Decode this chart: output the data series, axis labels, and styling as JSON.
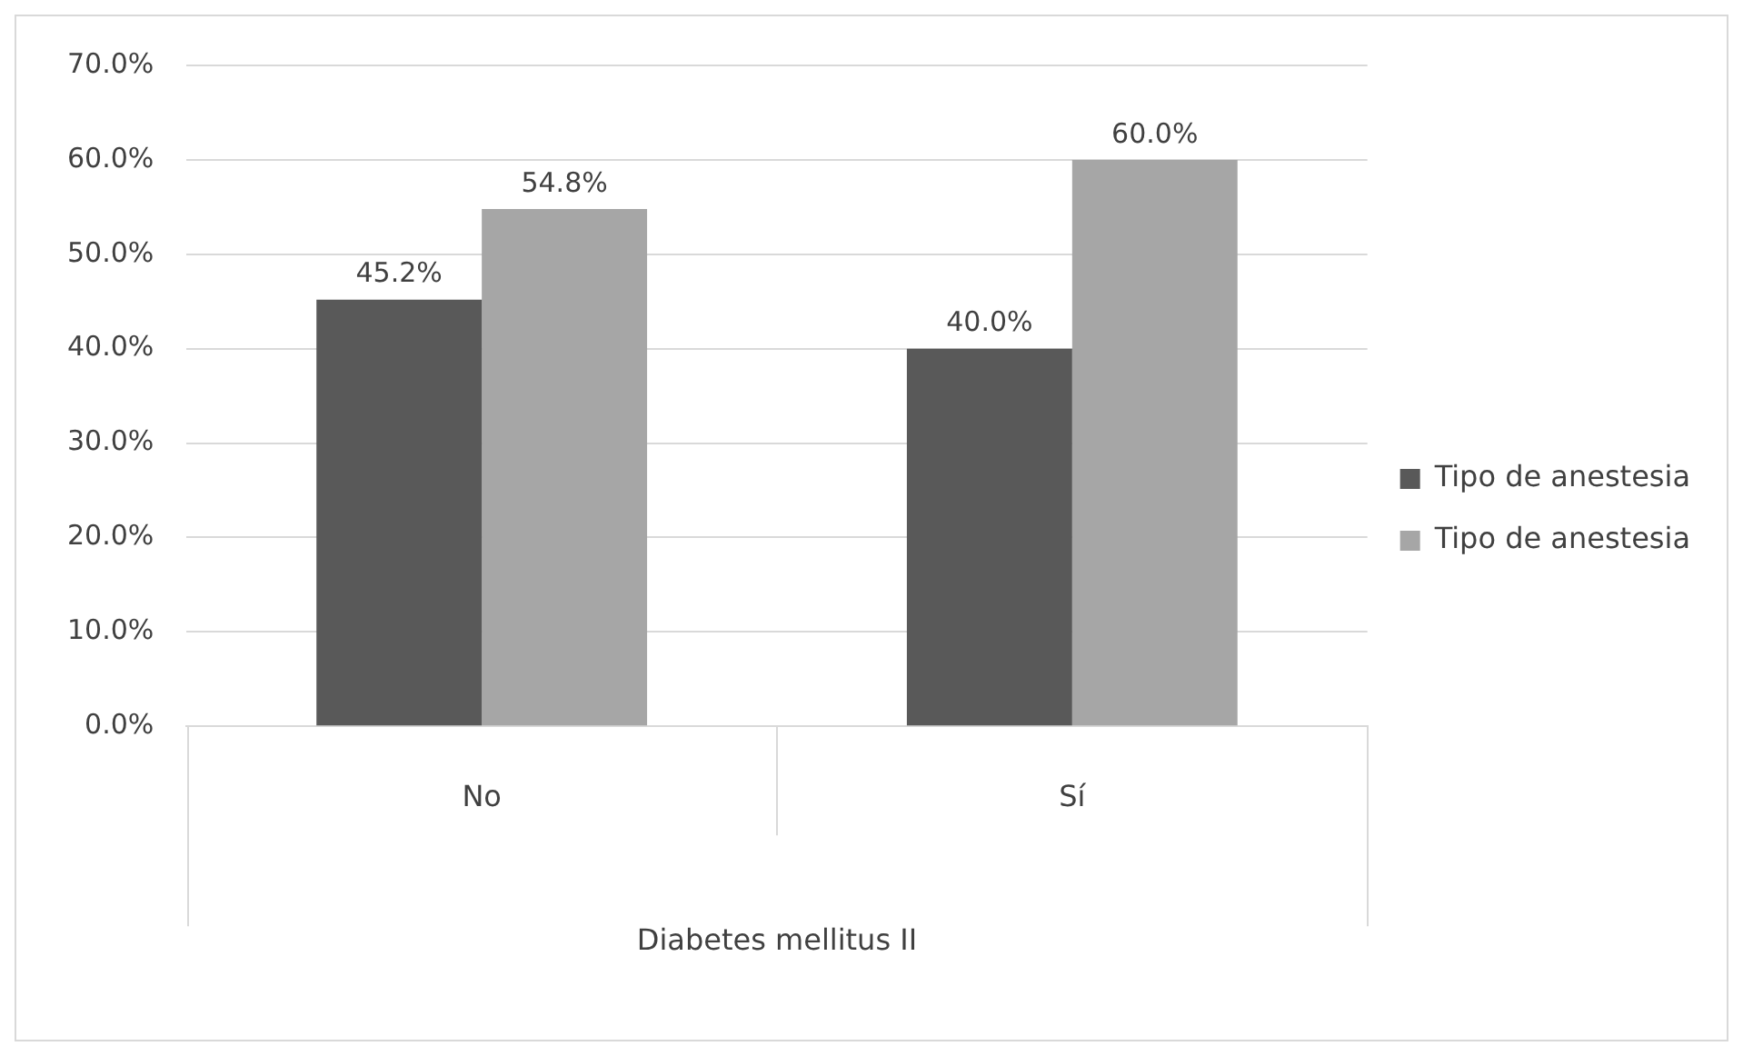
{
  "chart_data": {
    "type": "bar",
    "xlabel": "Diabetes mellitus II",
    "categories": [
      "No",
      "Sí"
    ],
    "series": [
      {
        "name": "Tipo de anestesia",
        "color": "#595959",
        "values": [
          45.2,
          40.0
        ],
        "value_labels": [
          "45.2%",
          "40.0%"
        ]
      },
      {
        "name": "Tipo de anestesia",
        "color": "#a6a6a6",
        "values": [
          54.8,
          60.0
        ],
        "value_labels": [
          "54.8%",
          "60.0%"
        ]
      }
    ],
    "ylim": [
      0,
      70
    ],
    "yticks": [
      {
        "value": 0,
        "label": "0.0%"
      },
      {
        "value": 10,
        "label": "10.0%"
      },
      {
        "value": 20,
        "label": "20.0%"
      },
      {
        "value": 30,
        "label": "30.0%"
      },
      {
        "value": 40,
        "label": "40.0%"
      },
      {
        "value": 50,
        "label": "50.0%"
      },
      {
        "value": 60,
        "label": "60.0%"
      },
      {
        "value": 70,
        "label": "70.0%"
      }
    ],
    "grid": "y",
    "legend": "right"
  }
}
